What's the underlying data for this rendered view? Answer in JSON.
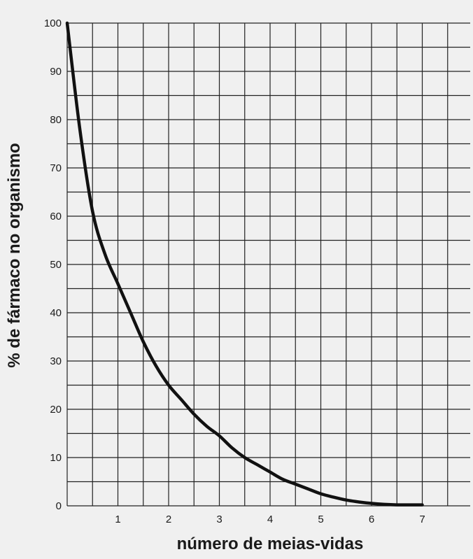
{
  "chart_data": {
    "type": "line",
    "xlabel": "número de meias-vidas",
    "ylabel": "% de fármaco no organismo",
    "xlim": [
      0,
      8
    ],
    "ylim": [
      0,
      100
    ],
    "x_ticks": [
      "1",
      "2",
      "3",
      "4",
      "5",
      "6",
      "7"
    ],
    "y_ticks": [
      "0",
      "10",
      "20",
      "30",
      "40",
      "50",
      "60",
      "70",
      "80",
      "90",
      "100"
    ],
    "grid": true,
    "series": [
      {
        "color": "#111111",
        "x": [
          0,
          0.25,
          0.5,
          0.75,
          1,
          1.25,
          1.5,
          1.75,
          2,
          2.25,
          2.5,
          2.75,
          3,
          3.25,
          3.5,
          3.75,
          4,
          4.25,
          4.5,
          4.75,
          5,
          5.25,
          5.5,
          5.75,
          6,
          6.25,
          6.5,
          6.75,
          7
        ],
        "y": [
          100,
          78,
          61,
          52,
          46,
          40,
          34,
          29,
          25,
          22,
          19,
          16.5,
          14.5,
          12,
          10,
          8.5,
          7,
          5.5,
          4.5,
          3.5,
          2.5,
          1.8,
          1.2,
          0.8,
          0.5,
          0.3,
          0.2,
          0.2,
          0.2
        ]
      }
    ]
  }
}
